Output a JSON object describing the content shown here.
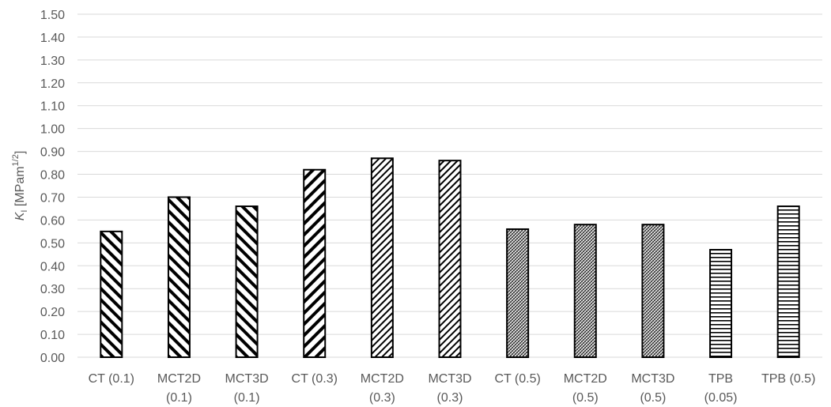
{
  "chart_data": {
    "type": "bar",
    "ylabel": {
      "symbol": "K",
      "subscript": "I",
      "unit_prefix": " [MPam",
      "unit_exponent": "1/2",
      "unit_suffix": "]"
    },
    "ylim": [
      0,
      1.5
    ],
    "y_tick_step": 0.1,
    "y_ticks": [
      "0.00",
      "0.10",
      "0.20",
      "0.30",
      "0.40",
      "0.50",
      "0.60",
      "0.70",
      "0.80",
      "0.90",
      "1.00",
      "1.10",
      "1.20",
      "1.30",
      "1.40",
      "1.50"
    ],
    "grid": true,
    "legend": "none",
    "categories": [
      [
        "CT (0.1)"
      ],
      [
        "MCT2D",
        "(0.1)"
      ],
      [
        "MCT3D",
        "(0.1)"
      ],
      [
        "CT (0.3)"
      ],
      [
        "MCT2D",
        "(0.3)"
      ],
      [
        "MCT3D",
        "(0.3)"
      ],
      [
        "CT (0.5)"
      ],
      [
        "MCT2D",
        "(0.5)"
      ],
      [
        "MCT3D",
        "(0.5)"
      ],
      [
        "TPB",
        "(0.05)"
      ],
      [
        "TPB (0.5)"
      ]
    ],
    "values": [
      0.55,
      0.7,
      0.66,
      0.82,
      0.87,
      0.86,
      0.56,
      0.58,
      0.58,
      0.47,
      0.66
    ],
    "patterns": [
      "diag-back-wide",
      "diag-back-wide",
      "diag-back-wide",
      "diag-fwd-wide",
      "diag-fwd-fine",
      "diag-fwd-fine",
      "cross-fine",
      "cross-fine",
      "cross-fine",
      "horizontal",
      "horizontal"
    ],
    "colors": {
      "bar_stroke": "#000000",
      "grid": "#d9d9d9",
      "text": "#595959",
      "axis": "#d9d9d9"
    }
  }
}
